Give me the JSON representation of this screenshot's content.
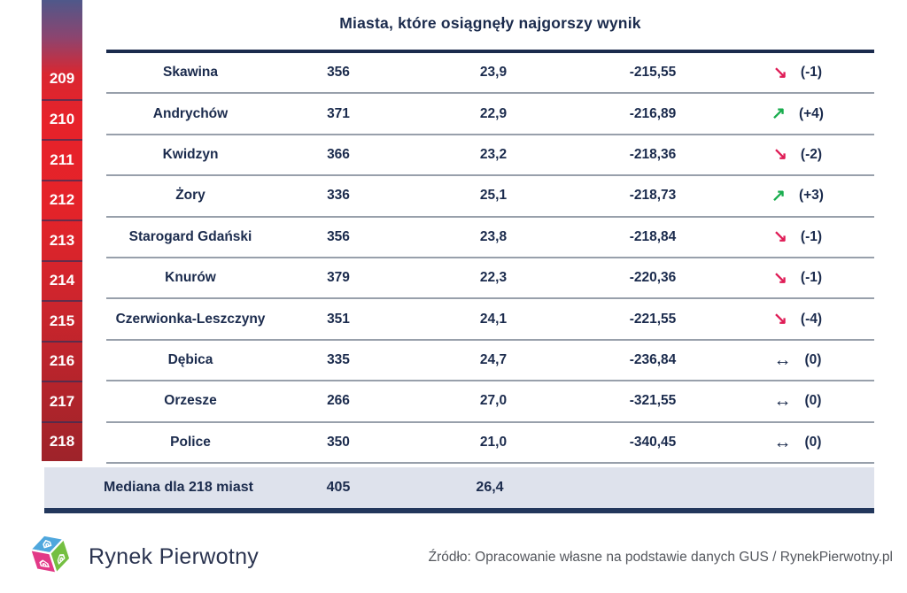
{
  "title": "Miasta, które osiągnęły najgorszy wynik",
  "colors": {
    "navy_text": "#1b2b4d",
    "red_arrow": "#df1c56",
    "green_arrow": "#19ad4e",
    "neutral_arrow": "#1b2b4d",
    "median_background": "#dee2ec",
    "rank_bar_top_blue": "#4f588a",
    "rank_bar_red": "#e7222a",
    "rank_bar_bottom_red": "#9e232a",
    "row_separator_gray": "#98a0ab",
    "header_rule_navy": "#1b2b4d"
  },
  "icons": {
    "down": "↘",
    "up": "↗",
    "same": "↔",
    "logo": "rynek-pierwotny-cube-logo"
  },
  "chart_data": {
    "type": "table",
    "title": "Miasta, które osiągnęły najgorszy wynik",
    "columns": [
      "rank",
      "city",
      "value1",
      "value2",
      "value3",
      "rank_change"
    ],
    "rows": [
      {
        "rank": "209",
        "city": "Skawina",
        "value1": "356",
        "value2": "23,9",
        "value3": "-215,55",
        "trend": "down",
        "change": "(-1)"
      },
      {
        "rank": "210",
        "city": "Andrychów",
        "value1": "371",
        "value2": "22,9",
        "value3": "-216,89",
        "trend": "up",
        "change": "(+4)"
      },
      {
        "rank": "211",
        "city": "Kwidzyn",
        "value1": "366",
        "value2": "23,2",
        "value3": "-218,36",
        "trend": "down",
        "change": "(-2)"
      },
      {
        "rank": "212",
        "city": "Żory",
        "value1": "336",
        "value2": "25,1",
        "value3": "-218,73",
        "trend": "up",
        "change": "(+3)"
      },
      {
        "rank": "213",
        "city": "Starogard Gdański",
        "value1": "356",
        "value2": "23,8",
        "value3": "-218,84",
        "trend": "down",
        "change": "(-1)"
      },
      {
        "rank": "214",
        "city": "Knurów",
        "value1": "379",
        "value2": "22,3",
        "value3": "-220,36",
        "trend": "down",
        "change": "(-1)"
      },
      {
        "rank": "215",
        "city": "Czerwionka-Leszczyny",
        "value1": "351",
        "value2": "24,1",
        "value3": "-221,55",
        "trend": "down",
        "change": "(-4)"
      },
      {
        "rank": "216",
        "city": "Dębica",
        "value1": "335",
        "value2": "24,7",
        "value3": "-236,84",
        "trend": "same",
        "change": "(0)"
      },
      {
        "rank": "217",
        "city": "Orzesze",
        "value1": "266",
        "value2": "27,0",
        "value3": "-321,55",
        "trend": "same",
        "change": "(0)"
      },
      {
        "rank": "218",
        "city": "Police",
        "value1": "350",
        "value2": "21,0",
        "value3": "-340,45",
        "trend": "same",
        "change": "(0)"
      }
    ],
    "median": {
      "label": "Mediana dla 218 miast",
      "value1": "405",
      "value2": "26,4"
    }
  },
  "footer": {
    "brand": "Rynek Pierwotny",
    "source": "Źródło: Opracowanie własne na podstawie danych GUS / RynekPierwotny.pl"
  }
}
